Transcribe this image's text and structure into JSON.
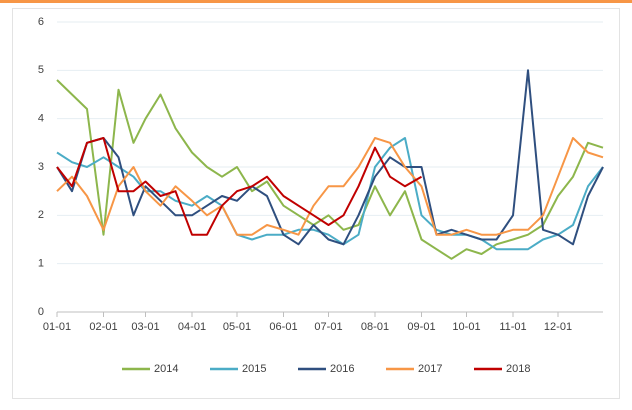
{
  "chart_data": {
    "type": "line",
    "x": [
      "01-01",
      "01-11",
      "01-21",
      "02-01",
      "02-11",
      "02-21",
      "03-01",
      "03-11",
      "03-21",
      "04-01",
      "04-11",
      "04-21",
      "05-01",
      "05-11",
      "05-21",
      "06-01",
      "06-11",
      "06-21",
      "07-01",
      "07-11",
      "07-21",
      "08-01",
      "08-11",
      "08-21",
      "09-01",
      "09-11",
      "09-21",
      "10-01",
      "10-11",
      "10-21",
      "11-01",
      "11-11",
      "11-21",
      "12-01",
      "12-11",
      "12-21",
      "12-31"
    ],
    "series": [
      {
        "name": "2014",
        "color": "#8db64c",
        "values": [
          4.8,
          4.5,
          4.2,
          1.6,
          4.6,
          3.5,
          4.0,
          4.5,
          3.8,
          3.3,
          3.0,
          2.8,
          3.0,
          2.5,
          2.7,
          2.2,
          2.0,
          1.8,
          2.0,
          1.7,
          1.8,
          2.6,
          2.0,
          2.5,
          1.5,
          1.3,
          1.1,
          1.3,
          1.2,
          1.4,
          1.5,
          1.6,
          1.8,
          2.4,
          2.8,
          3.5,
          3.4
        ]
      },
      {
        "name": "2015",
        "color": "#4bacc6",
        "values": [
          3.3,
          3.1,
          3.0,
          3.2,
          3.0,
          2.8,
          2.5,
          2.5,
          2.3,
          2.2,
          2.4,
          2.2,
          1.6,
          1.5,
          1.6,
          1.6,
          1.7,
          1.7,
          1.6,
          1.4,
          1.6,
          3.0,
          3.4,
          3.6,
          2.0,
          1.7,
          1.6,
          1.6,
          1.5,
          1.3,
          1.3,
          1.3,
          1.5,
          1.6,
          1.8,
          2.6,
          3.0
        ]
      },
      {
        "name": "2016",
        "color": "#2f4f7f",
        "values": [
          3.0,
          2.5,
          3.5,
          3.6,
          3.2,
          2.0,
          2.6,
          2.3,
          2.0,
          2.0,
          2.2,
          2.4,
          2.3,
          2.6,
          2.4,
          1.6,
          1.4,
          1.8,
          1.5,
          1.4,
          2.0,
          2.8,
          3.2,
          3.0,
          3.0,
          1.6,
          1.7,
          1.6,
          1.5,
          1.5,
          2.0,
          5.0,
          1.7,
          1.6,
          1.4,
          2.4,
          3.0
        ]
      },
      {
        "name": "2017",
        "color": "#f79646",
        "values": [
          2.5,
          2.8,
          2.4,
          1.7,
          2.6,
          3.0,
          2.5,
          2.2,
          2.6,
          2.3,
          2.0,
          2.2,
          1.6,
          1.6,
          1.8,
          1.7,
          1.6,
          2.2,
          2.6,
          2.6,
          3.0,
          3.6,
          3.5,
          3.0,
          2.6,
          1.6,
          1.6,
          1.7,
          1.6,
          1.6,
          1.7,
          1.7,
          2.0,
          2.8,
          3.6,
          3.3,
          3.2
        ]
      },
      {
        "name": "2018",
        "color": "#c00000",
        "values": [
          3.0,
          2.6,
          3.5,
          3.6,
          2.5,
          2.5,
          2.7,
          2.4,
          2.5,
          1.6,
          1.6,
          2.2,
          2.5,
          2.6,
          2.8,
          2.4,
          2.2,
          2.0,
          1.8,
          2.0,
          2.6,
          3.4,
          2.8,
          2.6,
          2.8,
          null,
          null,
          null,
          null,
          null,
          null,
          null,
          null,
          null,
          null,
          null,
          null
        ]
      }
    ],
    "xticks": [
      "01-01",
      "02-01",
      "03-01",
      "04-01",
      "05-01",
      "06-01",
      "07-01",
      "08-01",
      "09-01",
      "10-01",
      "11-01",
      "12-01"
    ],
    "ylim": [
      0,
      6
    ],
    "yticks": [
      0,
      1,
      2,
      3,
      4,
      5,
      6
    ],
    "grid": true,
    "legend": "bottom"
  }
}
